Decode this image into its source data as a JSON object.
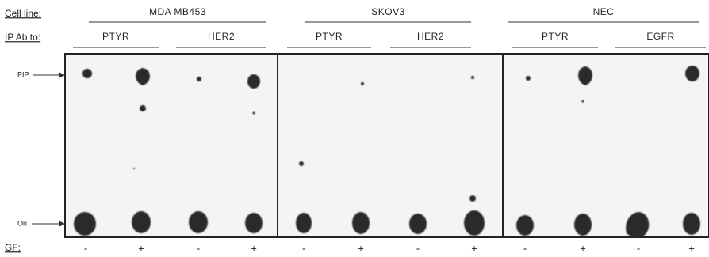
{
  "row_labels": {
    "cell_line": "Cell line:",
    "ip_ab": "IP Ab to:",
    "gf": "GF:"
  },
  "cell_lines": [
    "MDA MB453",
    "SKOV3",
    "NEC"
  ],
  "antibodies": [
    "PTYR",
    "HER2",
    "PTYR",
    "HER2",
    "PTYR",
    "EGFR"
  ],
  "gf": [
    "-",
    "+",
    "-",
    "+",
    "-",
    "+",
    "-",
    "+",
    "-",
    "+",
    "-",
    "+"
  ],
  "markers": {
    "pip": "PIP",
    "ori": "Ori"
  }
}
